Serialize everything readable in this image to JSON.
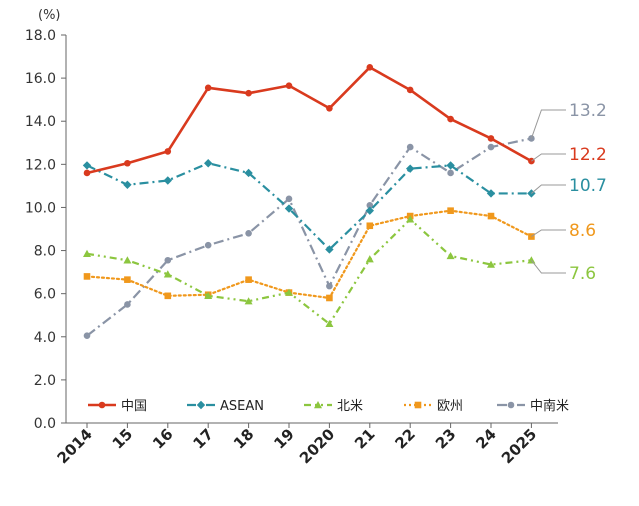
{
  "chart_data": {
    "type": "line",
    "unit_label": "(%)",
    "x": [
      "2014",
      "15",
      "16",
      "17",
      "18",
      "19",
      "2020",
      "21",
      "22",
      "23",
      "24",
      "2025"
    ],
    "ylim": [
      0,
      18
    ],
    "yticks": [
      "0.0",
      "2.0",
      "4.0",
      "6.0",
      "8.0",
      "10.0",
      "12.0",
      "14.0",
      "16.0",
      "18.0"
    ],
    "grid": false,
    "legend_position": "bottom",
    "series": [
      {
        "name": "中国",
        "color": "#d93a1e",
        "style": "solid",
        "marker": "circle",
        "values": [
          11.6,
          12.05,
          12.6,
          15.55,
          15.3,
          15.65,
          14.6,
          16.5,
          15.45,
          14.1,
          13.2,
          12.15
        ],
        "end_label": "12.2"
      },
      {
        "name": "ASEAN",
        "color": "#2a8fa0",
        "style": "dashdot",
        "marker": "diamond",
        "values": [
          11.95,
          11.05,
          11.25,
          12.05,
          11.6,
          9.95,
          8.05,
          9.85,
          11.8,
          11.95,
          10.65,
          10.65
        ],
        "end_label": "10.7"
      },
      {
        "name": "北米",
        "color": "#8cc63f",
        "style": "dashdotdot",
        "marker": "triangle",
        "values": [
          7.85,
          7.55,
          6.9,
          5.9,
          5.65,
          6.05,
          4.6,
          7.6,
          9.45,
          7.75,
          7.35,
          7.55
        ],
        "end_label": "7.6"
      },
      {
        "name": "欧州",
        "color": "#f0981c",
        "style": "dotted",
        "marker": "square",
        "values": [
          6.8,
          6.65,
          5.9,
          5.95,
          6.65,
          6.05,
          5.8,
          9.15,
          9.6,
          9.85,
          9.6,
          8.65
        ],
        "end_label": "8.6"
      },
      {
        "name": "中南米",
        "color": "#8a94a6",
        "style": "longdashdot",
        "marker": "circle",
        "values": [
          4.05,
          5.5,
          7.55,
          8.25,
          8.8,
          10.4,
          6.35,
          10.1,
          12.8,
          11.6,
          12.8,
          13.2
        ],
        "end_label": "13.2"
      }
    ]
  }
}
